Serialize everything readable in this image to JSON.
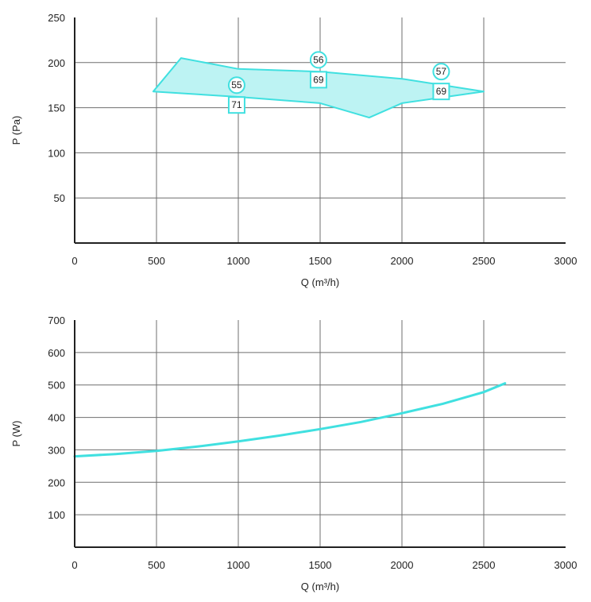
{
  "colors": {
    "accent": "#40e0e0",
    "fill": "#bdf3f3",
    "grid": "#6f6f6f",
    "axis": "#222222"
  },
  "chart_data": [
    {
      "type": "area",
      "xlabel": "Q (m³/h)",
      "ylabel": "P (Pa)",
      "xlim": [
        0,
        3000
      ],
      "ylim": [
        0,
        250
      ],
      "xticks": [
        0,
        500,
        1000,
        1500,
        2000,
        2500,
        3000
      ],
      "yticks": [
        50,
        100,
        150,
        200,
        250
      ],
      "grid": true,
      "region": [
        [
          480,
          168
        ],
        [
          650,
          205
        ],
        [
          1000,
          193
        ],
        [
          1500,
          190
        ],
        [
          2000,
          182
        ],
        [
          2500,
          168
        ],
        [
          2000,
          155
        ],
        [
          1800,
          139
        ],
        [
          1500,
          155
        ],
        [
          1000,
          162
        ],
        [
          480,
          168
        ]
      ],
      "annotations": [
        {
          "x": 990,
          "y": 175,
          "text": "55",
          "shape": "circle"
        },
        {
          "x": 990,
          "y": 153,
          "text": "71",
          "shape": "square"
        },
        {
          "x": 1490,
          "y": 203,
          "text": "56",
          "shape": "circle"
        },
        {
          "x": 1490,
          "y": 181,
          "text": "69",
          "shape": "square"
        },
        {
          "x": 2240,
          "y": 190,
          "text": "57",
          "shape": "circle"
        },
        {
          "x": 2240,
          "y": 168,
          "text": "69",
          "shape": "square"
        }
      ]
    },
    {
      "type": "line",
      "xlabel": "Q (m³/h)",
      "ylabel": "P (W)",
      "xlim": [
        0,
        3000
      ],
      "ylim": [
        0,
        700
      ],
      "xticks": [
        0,
        500,
        1000,
        1500,
        2000,
        2500,
        3000
      ],
      "yticks": [
        100,
        200,
        300,
        400,
        500,
        600,
        700
      ],
      "grid": true,
      "series": [
        {
          "x": [
            0,
            250,
            500,
            750,
            1000,
            1250,
            1500,
            1750,
            2000,
            2250,
            2500,
            2630
          ],
          "y": [
            280,
            287,
            297,
            310,
            326,
            344,
            364,
            386,
            413,
            442,
            478,
            505
          ]
        }
      ]
    }
  ]
}
